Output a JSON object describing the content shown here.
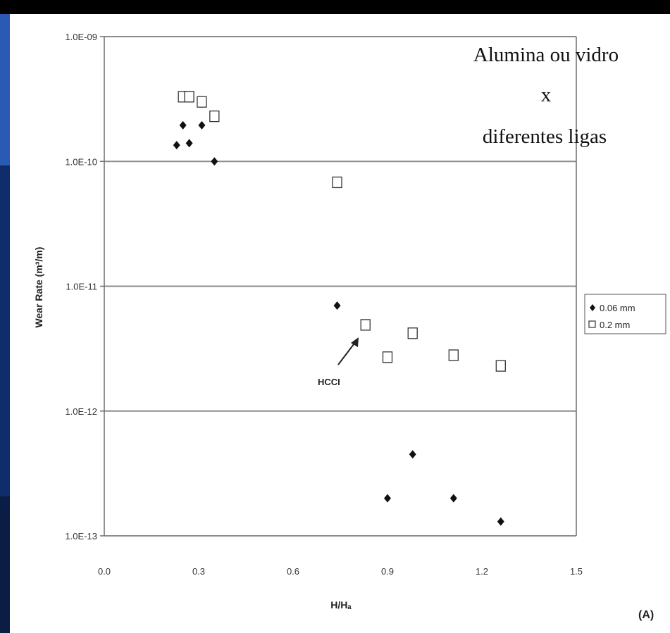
{
  "overlay": {
    "line1": "Alumina ou vidro",
    "line2": "x",
    "line3": "diferentes ligas"
  },
  "colors": {
    "background": "#000000",
    "panel": "#ffffff",
    "strip_blue": "#1f4fa8",
    "gridline": "#8c8c8c",
    "marker": "#111111"
  },
  "chart_data": {
    "type": "scatter",
    "title": "",
    "xlabel": "H/Hₐ",
    "ylabel": "Wear Rate (m³/m)",
    "xlim": [
      0.0,
      1.5
    ],
    "ylim": [
      1e-13,
      1e-09
    ],
    "y_scale": "log",
    "x_ticks": [
      "0.0",
      "0.3",
      "0.6",
      "0.9",
      "1.2",
      "1.5"
    ],
    "y_ticks": [
      "1.0E-09",
      "1.0E-10",
      "1.0E-11",
      "1.0E-12",
      "1.0E-13"
    ],
    "grid": "horizontal",
    "legend_position": "right",
    "panel_label": "(A)",
    "annotation": {
      "text": "HCCI",
      "x": 0.83,
      "y": 4.9e-12
    },
    "series": [
      {
        "name": "0.06 mm",
        "marker": "diamond-filled",
        "points": [
          {
            "x": 0.23,
            "y": 1.35e-10
          },
          {
            "x": 0.25,
            "y": 1.95e-10
          },
          {
            "x": 0.27,
            "y": 1.4e-10
          },
          {
            "x": 0.31,
            "y": 1.95e-10
          },
          {
            "x": 0.35,
            "y": 1e-10
          },
          {
            "x": 0.74,
            "y": 7e-12
          },
          {
            "x": 0.9,
            "y": 2e-13
          },
          {
            "x": 0.98,
            "y": 4.5e-13
          },
          {
            "x": 1.11,
            "y": 2e-13
          },
          {
            "x": 1.26,
            "y": 1.3e-13
          }
        ]
      },
      {
        "name": "0.2 mm",
        "marker": "square-open",
        "points": [
          {
            "x": 0.25,
            "y": 3.3e-10
          },
          {
            "x": 0.27,
            "y": 3.3e-10
          },
          {
            "x": 0.31,
            "y": 3e-10
          },
          {
            "x": 0.35,
            "y": 2.3e-10
          },
          {
            "x": 0.74,
            "y": 6.8e-11
          },
          {
            "x": 0.83,
            "y": 4.9e-12
          },
          {
            "x": 0.9,
            "y": 2.7e-12
          },
          {
            "x": 0.98,
            "y": 4.2e-12
          },
          {
            "x": 1.11,
            "y": 2.8e-12
          },
          {
            "x": 1.26,
            "y": 2.3e-12
          }
        ]
      }
    ]
  }
}
